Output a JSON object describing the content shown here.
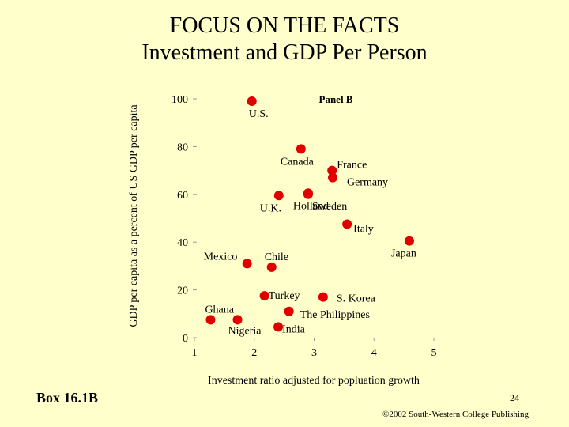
{
  "slide": {
    "title_line1": "FOCUS ON THE FACTS",
    "title_line2": "Investment and GDP Per Person",
    "box_label": "Box 16.1B",
    "page_number": "24",
    "copyright": "©2002 South-Western College Publishing"
  },
  "chart_data": {
    "type": "scatter",
    "panel_label": "Panel B",
    "xlabel": "Investment ratio adjusted for popluation growth",
    "ylabel": "GDP per capita as a percent of US GDP per capita",
    "xlim": [
      1,
      5
    ],
    "ylim": [
      0,
      100
    ],
    "x_ticks": [
      1,
      2,
      3,
      4,
      5
    ],
    "y_ticks": [
      0,
      20,
      40,
      60,
      80,
      100
    ],
    "marker_color": "#e00000",
    "points": [
      {
        "label": "U.S.",
        "x": 1.96,
        "y": 99
      },
      {
        "label": "Canada",
        "x": 2.78,
        "y": 79
      },
      {
        "label": "France",
        "x": 3.3,
        "y": 70
      },
      {
        "label": "Germany",
        "x": 3.31,
        "y": 67
      },
      {
        "label": "Sweden",
        "x": 2.9,
        "y": 60
      },
      {
        "label": "U.K.",
        "x": 2.41,
        "y": 59.5
      },
      {
        "label": "Holland",
        "x": 2.9,
        "y": 60.5
      },
      {
        "label": "Italy",
        "x": 3.55,
        "y": 47.5
      },
      {
        "label": "Japan",
        "x": 4.59,
        "y": 40.5
      },
      {
        "label": "Mexico",
        "x": 1.88,
        "y": 31
      },
      {
        "label": "Chile",
        "x": 2.29,
        "y": 29.5
      },
      {
        "label": "Turkey",
        "x": 2.17,
        "y": 17.5
      },
      {
        "label": "S. Korea",
        "x": 3.15,
        "y": 17
      },
      {
        "label": "The Philippines",
        "x": 2.58,
        "y": 11
      },
      {
        "label": "Ghana",
        "x": 1.27,
        "y": 7.5
      },
      {
        "label": "Nigeria",
        "x": 1.72,
        "y": 7.5
      },
      {
        "label": "India",
        "x": 2.4,
        "y": 4.5
      }
    ]
  }
}
